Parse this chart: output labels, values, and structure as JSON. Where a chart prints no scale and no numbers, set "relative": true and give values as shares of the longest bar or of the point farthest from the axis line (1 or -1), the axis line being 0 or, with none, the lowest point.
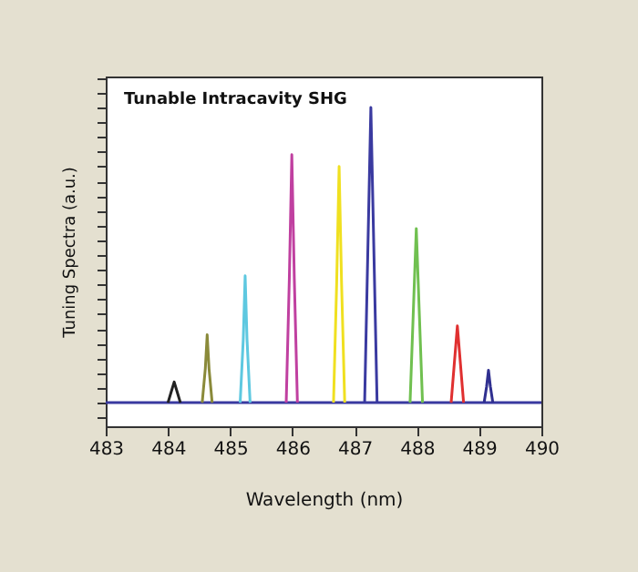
{
  "chart_data": {
    "type": "line",
    "title": "Tunable Intracavity SHG",
    "xlabel": "Wavelength (nm)",
    "ylabel": "Tuning Spectra (a.u.)",
    "relative": true,
    "xlim": [
      483,
      490
    ],
    "xticks": [
      483,
      484,
      485,
      486,
      487,
      488,
      489,
      490
    ],
    "grid": false,
    "legend": false,
    "marker": "none",
    "line_style": "solid",
    "series": [
      {
        "color": "#3a3aa0",
        "x": [
          483,
          490
        ],
        "values": [
          0,
          0
        ]
      },
      {
        "color": "#222222",
        "x": [
          484.0,
          484.05,
          484.1,
          484.15,
          484.2
        ],
        "values": [
          0,
          0.035,
          0.07,
          0.035,
          0
        ]
      },
      {
        "color": "#8a8a3a",
        "x": [
          484.55,
          484.6,
          484.63,
          484.66,
          484.71
        ],
        "values": [
          0,
          0.115,
          0.23,
          0.115,
          0
        ]
      },
      {
        "color": "#5ec8e0",
        "x": [
          485.16,
          485.21,
          485.24,
          485.27,
          485.32
        ],
        "values": [
          0,
          0.215,
          0.43,
          0.215,
          0
        ]
      },
      {
        "color": "#c040a0",
        "x": [
          485.9,
          485.95,
          485.99,
          486.03,
          486.08
        ],
        "values": [
          0,
          0.42,
          0.84,
          0.42,
          0
        ]
      },
      {
        "color": "#f0e020",
        "x": [
          486.66,
          486.71,
          486.75,
          486.79,
          486.84
        ],
        "values": [
          0,
          0.4,
          0.8,
          0.4,
          0
        ]
      },
      {
        "color": "#3a3aa0",
        "x": [
          487.16,
          487.21,
          487.26,
          487.31,
          487.36
        ],
        "values": [
          0,
          0.5,
          1.0,
          0.5,
          0
        ]
      },
      {
        "color": "#70c050",
        "x": [
          487.89,
          487.94,
          487.99,
          488.04,
          488.09
        ],
        "values": [
          0,
          0.295,
          0.59,
          0.295,
          0
        ]
      },
      {
        "color": "#e03030",
        "x": [
          488.55,
          488.6,
          488.65,
          488.7,
          488.75
        ],
        "values": [
          0,
          0.13,
          0.26,
          0.13,
          0
        ]
      },
      {
        "color": "#303090",
        "x": [
          489.08,
          489.12,
          489.15,
          489.18,
          489.22
        ],
        "values": [
          0,
          0.055,
          0.11,
          0.055,
          0
        ]
      }
    ]
  }
}
